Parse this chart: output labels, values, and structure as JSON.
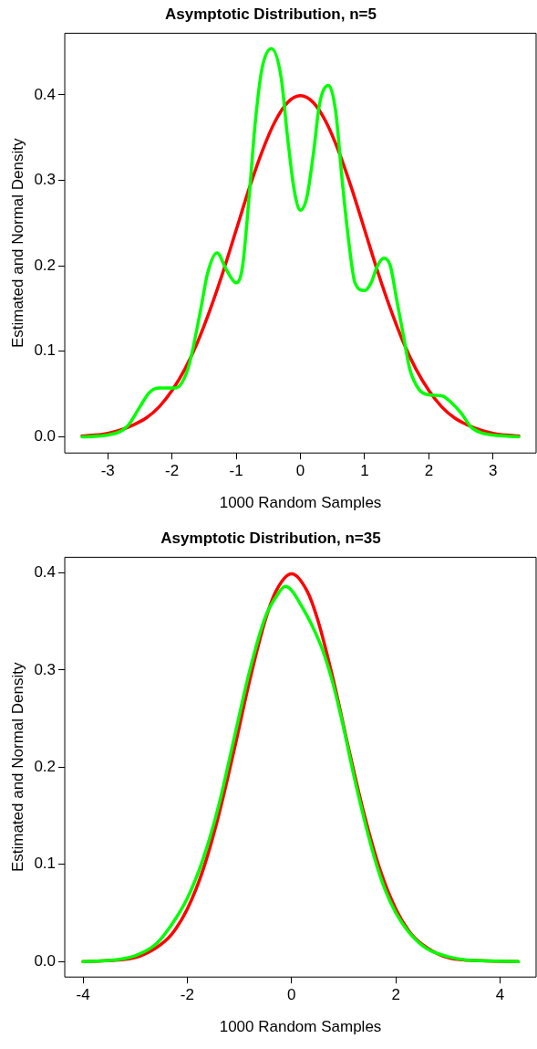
{
  "chart_data": [
    {
      "type": "line",
      "title": "Asymptotic Distribution, n=5",
      "xlabel": "1000 Random Samples",
      "ylabel": "Estimated and Normal Density",
      "xlim": [
        -3.67,
        3.67
      ],
      "ylim": [
        -0.019,
        0.472
      ],
      "xticks": [
        -3,
        -2,
        -1,
        0,
        1,
        2,
        3
      ],
      "yticks": [
        {
          "value": 0,
          "label": "0.0"
        },
        0.1,
        0.2,
        0.3,
        0.4
      ],
      "grid": false,
      "legend": false,
      "marker": "none",
      "line_style": "solid",
      "series": [
        {
          "color": "#00ff00",
          "x": [
            -3.4,
            -3.0,
            -2.7,
            -2.5,
            -2.35,
            -2.2,
            -1.95,
            -1.75,
            -1.55,
            -1.45,
            -1.3,
            -1.15,
            -1.0,
            -0.9,
            -0.8,
            -0.7,
            -0.6,
            -0.45,
            -0.3,
            -0.2,
            -0.1,
            0,
            0.1,
            0.2,
            0.3,
            0.44,
            0.55,
            0.65,
            0.75,
            0.85,
            1.0,
            1.1,
            1.2,
            1.3,
            1.4,
            1.5,
            1.6,
            1.7,
            1.85,
            2.0,
            2.2,
            2.35,
            2.5,
            2.65,
            2.8,
            3.0,
            3.4
          ],
          "values": [
            0.0,
            0.002,
            0.012,
            0.035,
            0.052,
            0.057,
            0.057,
            0.08,
            0.15,
            0.19,
            0.215,
            0.195,
            0.18,
            0.2,
            0.28,
            0.37,
            0.43,
            0.454,
            0.42,
            0.35,
            0.29,
            0.265,
            0.28,
            0.33,
            0.39,
            0.411,
            0.38,
            0.3,
            0.23,
            0.18,
            0.171,
            0.18,
            0.2,
            0.209,
            0.2,
            0.16,
            0.12,
            0.08,
            0.055,
            0.049,
            0.048,
            0.04,
            0.028,
            0.012,
            0.005,
            0.002,
            0.0
          ]
        },
        {
          "color": "#ff0000",
          "x": [
            -3.4,
            -3.2,
            -3.0,
            -2.8,
            -2.6,
            -2.4,
            -2.2,
            -2.0,
            -1.8,
            -1.6,
            -1.4,
            -1.2,
            -1.0,
            -0.8,
            -0.6,
            -0.4,
            -0.2,
            0,
            0.2,
            0.4,
            0.6,
            0.8,
            1.0,
            1.2,
            1.4,
            1.6,
            1.8,
            2.0,
            2.2,
            2.4,
            2.6,
            2.8,
            3.0,
            3.2,
            3.4
          ],
          "values": [
            0.001,
            0.002,
            0.004,
            0.008,
            0.014,
            0.022,
            0.035,
            0.054,
            0.079,
            0.111,
            0.15,
            0.194,
            0.242,
            0.29,
            0.333,
            0.368,
            0.391,
            0.399,
            0.391,
            0.368,
            0.333,
            0.29,
            0.242,
            0.194,
            0.15,
            0.111,
            0.079,
            0.054,
            0.035,
            0.022,
            0.014,
            0.008,
            0.004,
            0.002,
            0.001
          ]
        }
      ]
    },
    {
      "type": "line",
      "title": "Asymptotic Distribution, n=35",
      "xlabel": "1000 Random Samples",
      "ylabel": "Estimated and Normal Density",
      "xlim": [
        -4.35,
        4.69
      ],
      "ylim": [
        -0.016,
        0.416
      ],
      "xticks": [
        -4,
        -2,
        0,
        2,
        4
      ],
      "yticks": [
        {
          "value": 0,
          "label": "0.0"
        },
        0.1,
        0.2,
        0.3,
        0.4
      ],
      "grid": false,
      "legend": false,
      "marker": "none",
      "line_style": "solid",
      "series": [
        {
          "color": "#00ff00",
          "x": [
            -4.0,
            -3.5,
            -3.0,
            -2.6,
            -2.3,
            -2.0,
            -1.7,
            -1.4,
            -1.1,
            -0.8,
            -0.5,
            -0.3,
            -0.12,
            0,
            0.2,
            0.4,
            0.6,
            0.8,
            1.0,
            1.2,
            1.4,
            1.6,
            1.8,
            2.0,
            2.3,
            2.6,
            3.0,
            3.5,
            4.35
          ],
          "values": [
            0.0,
            0.001,
            0.006,
            0.018,
            0.038,
            0.065,
            0.105,
            0.16,
            0.23,
            0.3,
            0.355,
            0.375,
            0.386,
            0.382,
            0.365,
            0.345,
            0.32,
            0.285,
            0.24,
            0.19,
            0.145,
            0.105,
            0.073,
            0.05,
            0.027,
            0.013,
            0.005,
            0.001,
            0.0
          ]
        },
        {
          "color": "#ff0000",
          "x": [
            -4.0,
            -3.5,
            -3.0,
            -2.6,
            -2.3,
            -2.0,
            -1.7,
            -1.4,
            -1.1,
            -0.8,
            -0.5,
            -0.3,
            0,
            0.3,
            0.5,
            0.8,
            1.1,
            1.4,
            1.7,
            2.0,
            2.3,
            2.6,
            3.0,
            3.5,
            4.35
          ],
          "values": [
            0.0,
            0.001,
            0.004,
            0.014,
            0.028,
            0.054,
            0.094,
            0.15,
            0.218,
            0.29,
            0.352,
            0.381,
            0.399,
            0.381,
            0.352,
            0.29,
            0.218,
            0.15,
            0.094,
            0.054,
            0.028,
            0.014,
            0.004,
            0.001,
            0.0
          ]
        }
      ]
    }
  ]
}
